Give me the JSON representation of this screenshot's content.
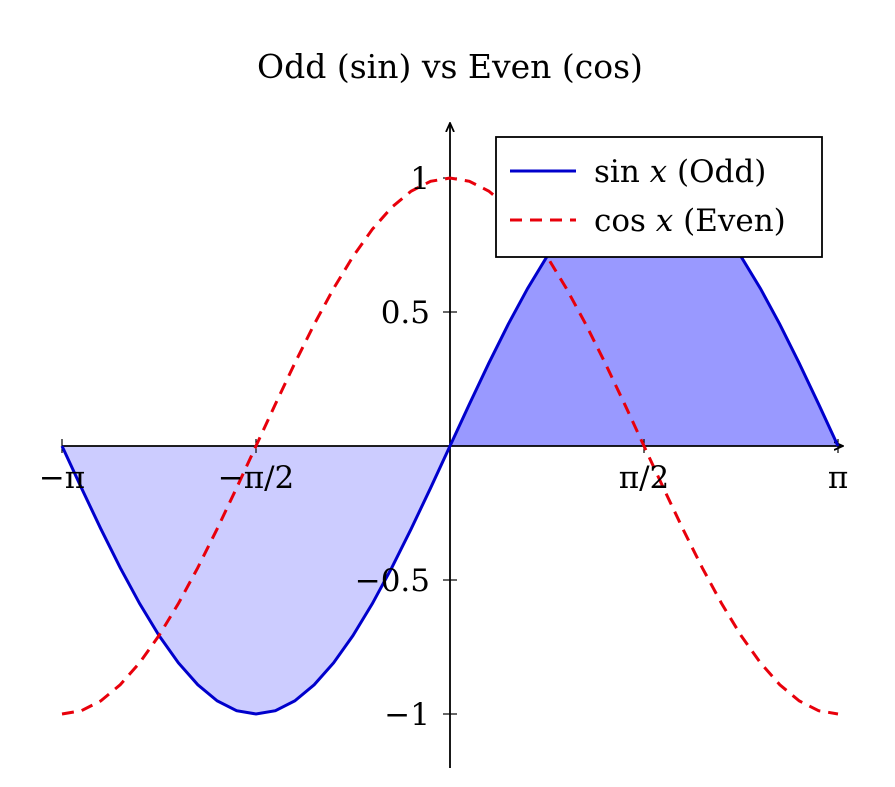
{
  "chart_data": {
    "type": "line",
    "title": "Odd (sin) vs Even (cos)",
    "xlabel": "",
    "ylabel": "",
    "xlim": [
      -3.14159,
      3.14159
    ],
    "ylim": [
      -1.2,
      1.2
    ],
    "x_ticks": [
      {
        "value": -3.14159,
        "label": "−π"
      },
      {
        "value": -1.5708,
        "label": "−π/2"
      },
      {
        "value": 1.5708,
        "label": "π/2"
      },
      {
        "value": 3.14159,
        "label": "π"
      }
    ],
    "y_ticks": [
      {
        "value": 1,
        "label": "1"
      },
      {
        "value": 0.5,
        "label": "0.5"
      },
      {
        "value": -0.5,
        "label": "−0.5"
      },
      {
        "value": -1,
        "label": "−1"
      }
    ],
    "x": [
      -3.1416,
      -2.9845,
      -2.8274,
      -2.6704,
      -2.5133,
      -2.3562,
      -2.1991,
      -2.042,
      -1.885,
      -1.7279,
      -1.5708,
      -1.4137,
      -1.2566,
      -1.0996,
      -0.9425,
      -0.7854,
      -0.6283,
      -0.4712,
      -0.3142,
      -0.1571,
      0.0,
      0.1571,
      0.3142,
      0.4712,
      0.6283,
      0.7854,
      0.9425,
      1.0996,
      1.2566,
      1.4137,
      1.5708,
      1.7279,
      1.885,
      2.042,
      2.1991,
      2.3562,
      2.5133,
      2.6704,
      2.8274,
      2.9845,
      3.1416
    ],
    "series": [
      {
        "name": "sin x (Odd)",
        "color": "#0000cc",
        "style": "solid",
        "values": [
          0.0,
          -0.1564,
          -0.309,
          -0.454,
          -0.5878,
          -0.7071,
          -0.809,
          -0.891,
          -0.9511,
          -0.9877,
          -1.0,
          -0.9877,
          -0.9511,
          -0.891,
          -0.809,
          -0.7071,
          -0.5878,
          -0.454,
          -0.309,
          -0.1564,
          0.0,
          0.1564,
          0.309,
          0.454,
          0.5878,
          0.7071,
          0.809,
          0.891,
          0.9511,
          0.9877,
          1.0,
          0.9877,
          0.9511,
          0.891,
          0.809,
          0.7071,
          0.5878,
          0.454,
          0.309,
          0.1564,
          0.0
        ]
      },
      {
        "name": "cos x (Even)",
        "color": "#e8000b",
        "style": "dashed",
        "values": [
          -1.0,
          -0.9877,
          -0.9511,
          -0.891,
          -0.809,
          -0.7071,
          -0.5878,
          -0.454,
          -0.309,
          -0.1564,
          0.0,
          0.1564,
          0.309,
          0.454,
          0.5878,
          0.7071,
          0.809,
          0.891,
          0.9511,
          0.9877,
          1.0,
          0.9877,
          0.9511,
          0.891,
          0.809,
          0.7071,
          0.5878,
          0.454,
          0.309,
          0.1564,
          0.0,
          -0.1564,
          -0.309,
          -0.454,
          -0.5878,
          -0.7071,
          -0.809,
          -0.891,
          -0.9511,
          -0.9877,
          -1.0
        ]
      }
    ],
    "fills": [
      {
        "series": "sin x (Odd)",
        "x_range": [
          -3.14159,
          0
        ],
        "color": "#ccccff"
      },
      {
        "series": "sin x (Odd)",
        "x_range": [
          0,
          3.14159
        ],
        "color": "#9999ff"
      }
    ],
    "legend": {
      "position": "top-right",
      "entries": [
        {
          "label": "sin x (Odd)",
          "func": "sin",
          "var": "x",
          "note": "(Odd)"
        },
        {
          "label": "cos x (Even)",
          "func": "cos",
          "var": "x",
          "note": "(Even)"
        }
      ]
    },
    "grid": false
  }
}
